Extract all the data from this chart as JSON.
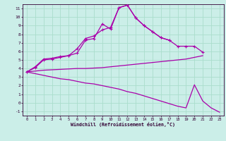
{
  "xlabel": "Windchill (Refroidissement éolien,°C)",
  "background_color": "#cbeee8",
  "grid_color": "#aaddcc",
  "line_color": "#aa00aa",
  "xlim": [
    -0.5,
    23.5
  ],
  "ylim": [
    -1.5,
    11.5
  ],
  "xticks": [
    0,
    1,
    2,
    3,
    4,
    5,
    6,
    7,
    8,
    9,
    10,
    11,
    12,
    13,
    14,
    15,
    16,
    17,
    18,
    19,
    20,
    21,
    22,
    23
  ],
  "yticks": [
    -1,
    0,
    1,
    2,
    3,
    4,
    5,
    6,
    7,
    8,
    9,
    10,
    11
  ],
  "line1_x": [
    0,
    1,
    2,
    3,
    4,
    5,
    6,
    7,
    8,
    9,
    10,
    11,
    12,
    13,
    14,
    15,
    16,
    17,
    18,
    19,
    20,
    21
  ],
  "line1_y": [
    3.6,
    4.2,
    5.1,
    5.2,
    5.4,
    5.5,
    6.3,
    7.5,
    7.8,
    8.5,
    8.8,
    11.1,
    11.4,
    9.9,
    9.0,
    8.3,
    7.6,
    7.3,
    6.6,
    6.6,
    6.6,
    5.9
  ],
  "line2_x": [
    0,
    1,
    2,
    3,
    4,
    5,
    6,
    7,
    8,
    9,
    10,
    11,
    12,
    13,
    14,
    15,
    16,
    17
  ],
  "line2_y": [
    3.6,
    4.1,
    5.0,
    5.1,
    5.3,
    5.5,
    5.8,
    7.3,
    7.5,
    9.2,
    8.6,
    11.1,
    11.4,
    9.9,
    9.0,
    8.3,
    7.6,
    7.3
  ],
  "line3_x": [
    0,
    1,
    2,
    3,
    4,
    5,
    6,
    7,
    8,
    9,
    10,
    11,
    12,
    13,
    14,
    15,
    16,
    17,
    18,
    19,
    20,
    21
  ],
  "line3_y": [
    3.6,
    3.7,
    3.8,
    3.85,
    3.9,
    3.95,
    4.0,
    4.0,
    4.05,
    4.1,
    4.2,
    4.3,
    4.4,
    4.5,
    4.6,
    4.7,
    4.8,
    4.9,
    5.0,
    5.1,
    5.3,
    5.5
  ],
  "line4_x": [
    0,
    1,
    2,
    3,
    4,
    5,
    6,
    7,
    8,
    9,
    10,
    11,
    12,
    13,
    14,
    15,
    16,
    17,
    18,
    19,
    20,
    21,
    22,
    23
  ],
  "line4_y": [
    3.6,
    3.4,
    3.2,
    3.0,
    2.8,
    2.7,
    2.5,
    2.3,
    2.2,
    2.0,
    1.8,
    1.6,
    1.3,
    1.1,
    0.8,
    0.5,
    0.2,
    -0.1,
    -0.4,
    -0.6,
    2.1,
    0.2,
    -0.6,
    -1.1
  ]
}
